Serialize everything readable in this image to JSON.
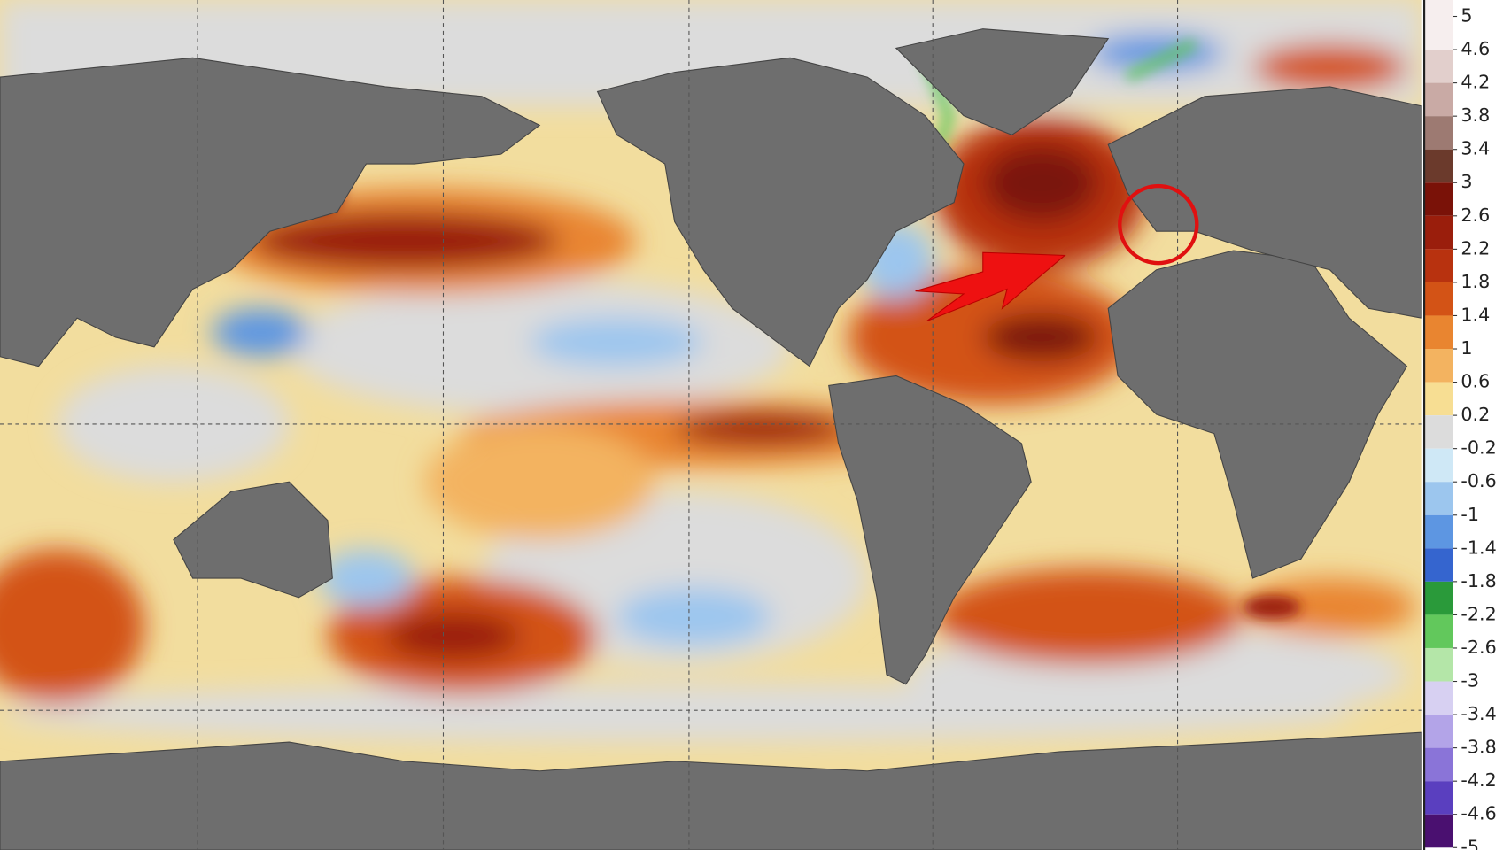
{
  "colorbar": {
    "ticks": [
      5,
      4.6,
      4.2,
      3.8,
      3.4,
      3,
      2.6,
      2.2,
      1.8,
      1.4,
      1,
      0.6,
      0.2,
      -0.2,
      -0.6,
      -1,
      -1.4,
      -1.8,
      -2.2,
      -2.6,
      -3,
      -3.4,
      -3.8,
      -4.2,
      -4.6,
      -5
    ],
    "colors": [
      "#f6eeee",
      "#e2cfcc",
      "#c9aaa5",
      "#9d7a72",
      "#6b3a2c",
      "#7a1208",
      "#9a1e0c",
      "#b8320f",
      "#d35316",
      "#e98530",
      "#f3b360",
      "#f7de93",
      "#dcdcdc",
      "#cfe8f6",
      "#9cc6ee",
      "#5d96e2",
      "#3565cf",
      "#2a9a3a",
      "#62c85c",
      "#b4e6a8",
      "#d7d0f2",
      "#b3a4e8",
      "#8a74d8",
      "#5a3fbf",
      "#4a1070"
    ]
  }
}
